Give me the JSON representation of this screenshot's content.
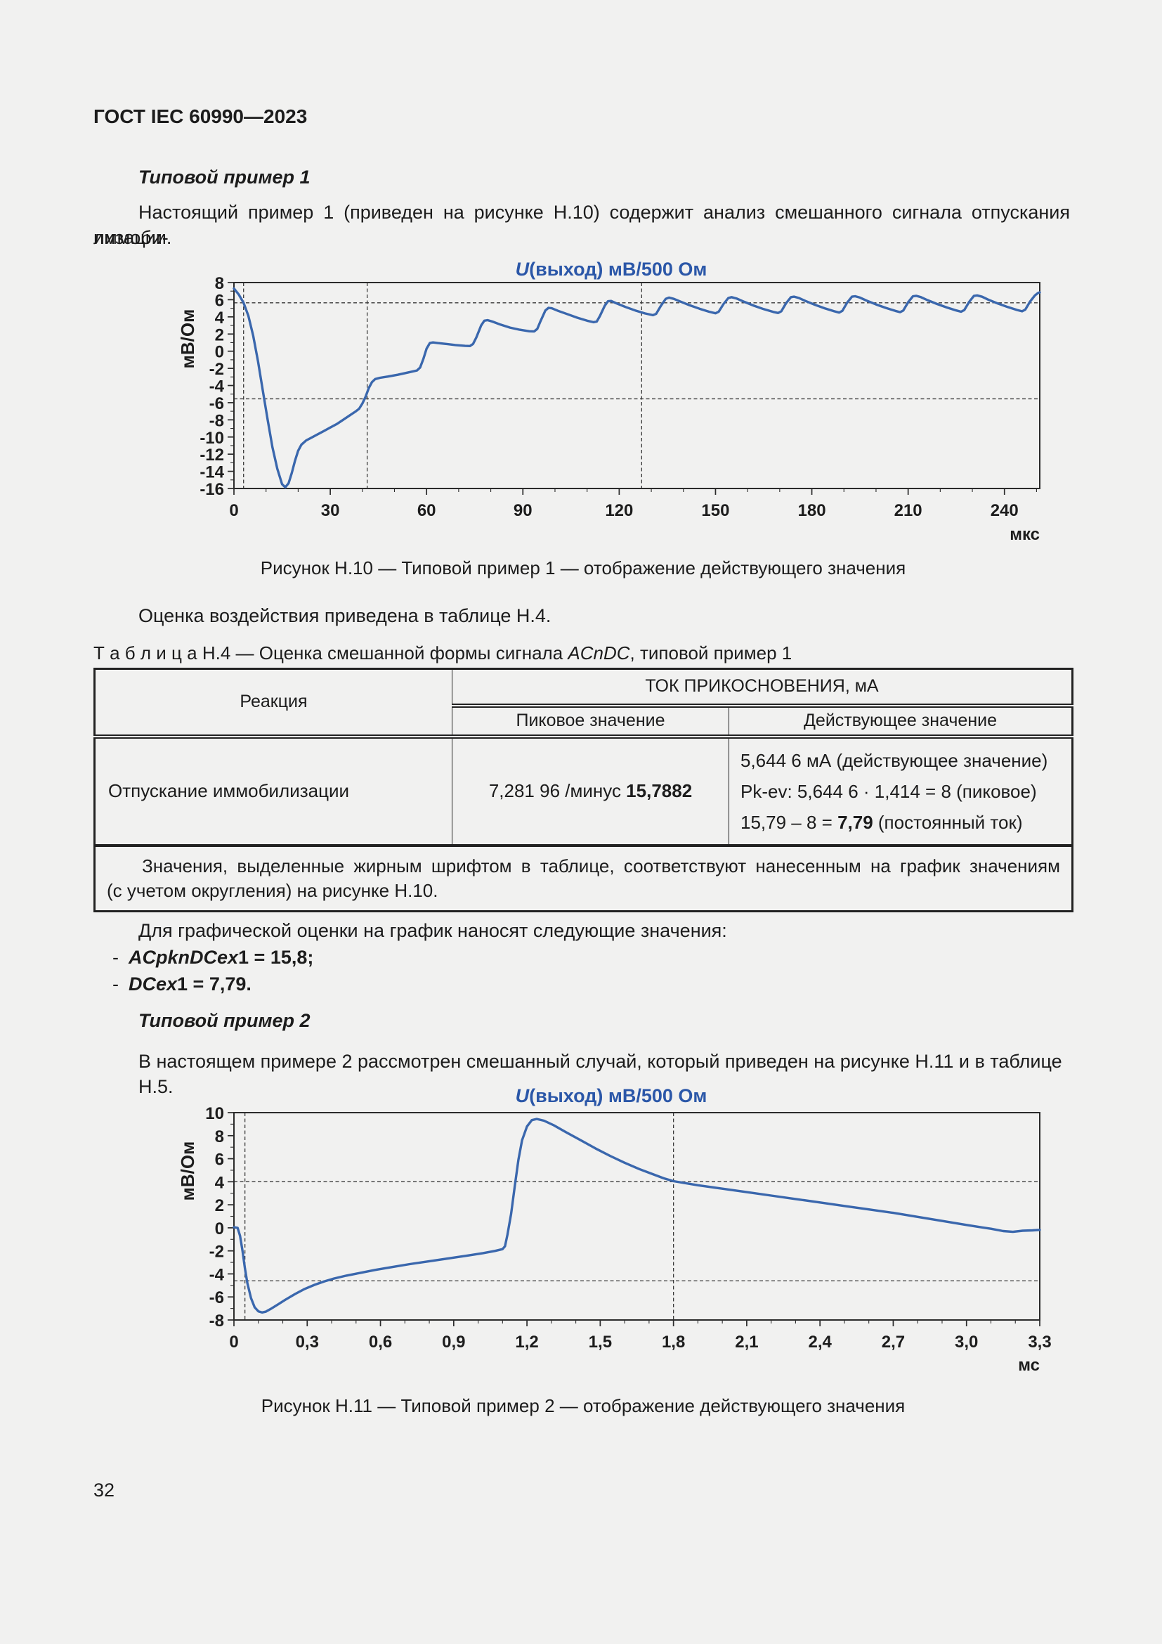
{
  "page": {
    "header": "ГОСТ IEC 60990—2023",
    "number": "32"
  },
  "colors": {
    "accent_blue": "#2b57a8",
    "curve_blue": "#3a67ad"
  },
  "example1": {
    "heading": "Типовой пример 1",
    "intro_lines": [
      "Настоящий пример 1 (приведен на рисунке Н.10) содержит анализ смешанного сигнала отпускания иммоби-",
      "лизации."
    ]
  },
  "figure10": {
    "caption": "Рисунок Н.10 — Типовой пример 1 — отображение действующего значения"
  },
  "after_fig10": "Оценка воздействия приведена в таблице Н.4.",
  "table": {
    "title_prefix": "Т а б л и ц а   Н.4 — Оценка смешанной формы сигнала ",
    "title_italic": "ACnDC",
    "title_suffix": ", типовой пример 1",
    "col_reaction": "Реакция",
    "col_touch_current": "ТОК ПРИКОСНОВЕНИЯ, мА",
    "col_peak": "Пиковое значение",
    "col_rms": "Действующее значение",
    "row": {
      "reaction": "Отпускание иммобилизации",
      "peak_normal": "7,281 96 /минус ",
      "peak_bold": "15,7882",
      "rms_line1": "5,644 6 мА (действующее значение)",
      "rms_line2": "Pk-ev: 5,644 6 · 1,414 = 8 (пиковое)",
      "rms_line3_normal": "15,79 – 8 = ",
      "rms_line3_bold": "7,79",
      "rms_line3_tail": " (постоянный ток)"
    },
    "note_lines": [
      "Значения, выделенные жирным шрифтом в таблице, соответствуют нанесенным на график значениям",
      "(с учетом округления) на рисунке Н.10."
    ]
  },
  "graph_values": {
    "intro": "Для графической оценки на график наносят следующие значения:",
    "items": [
      {
        "dash": "-",
        "var": "ACpknDCex",
        "rest": "1 = 15,8;"
      },
      {
        "dash": "-",
        "var": "DCex",
        "rest": "1 = 7,79."
      }
    ]
  },
  "example2": {
    "heading": "Типовой пример 2",
    "intro": "В настоящем примере 2 рассмотрен смешанный случай, который приведен на рисунке Н.11 и в таблице Н.5."
  },
  "figure11": {
    "caption": "Рисунок Н.11 — Типовой пример 2 — отображение действующего значения"
  },
  "chart_data": [
    {
      "type": "line",
      "title": "U(выход) мВ/500 Ом",
      "ylabel": "мВ/Ом",
      "x_unit": "мкс",
      "xlim": [
        0,
        251
      ],
      "ylim": [
        -16,
        8
      ],
      "x_ticks": [
        {
          "v": 0,
          "label": "0"
        },
        {
          "v": 30,
          "label": "30"
        },
        {
          "v": 60,
          "label": "60"
        },
        {
          "v": 90,
          "label": "90"
        },
        {
          "v": 120,
          "label": "120"
        },
        {
          "v": 150,
          "label": "150"
        },
        {
          "v": 180,
          "label": "180"
        },
        {
          "v": 210,
          "label": "210"
        },
        {
          "v": 240,
          "label": "240"
        }
      ],
      "y_ticks": [
        8,
        6,
        4,
        2,
        0,
        -2,
        -4,
        -6,
        -8,
        -10,
        -12,
        -14,
        -16
      ],
      "cursors_x": [
        3,
        41.5,
        127
      ],
      "cursors_y": [
        5.64,
        -5.55
      ],
      "points": [
        [
          0,
          7.3
        ],
        [
          1.5,
          6.6
        ],
        [
          3,
          5.64
        ],
        [
          4.5,
          4.1
        ],
        [
          6,
          1.8
        ],
        [
          7.5,
          -1.2
        ],
        [
          9,
          -4.6
        ],
        [
          10.5,
          -8
        ],
        [
          12,
          -11.2
        ],
        [
          13.5,
          -13.7
        ],
        [
          15,
          -15.5
        ],
        [
          16,
          -15.85
        ],
        [
          17,
          -15.4
        ],
        [
          18,
          -14.2
        ],
        [
          19,
          -12.8
        ],
        [
          20,
          -11.6
        ],
        [
          21,
          -10.9
        ],
        [
          22.5,
          -10.4
        ],
        [
          24,
          -10.1
        ],
        [
          26,
          -9.7
        ],
        [
          28,
          -9.3
        ],
        [
          30,
          -8.9
        ],
        [
          32,
          -8.5
        ],
        [
          34,
          -8
        ],
        [
          36,
          -7.5
        ],
        [
          38,
          -7
        ],
        [
          39,
          -6.7
        ],
        [
          40,
          -6.1
        ],
        [
          41,
          -5.3
        ],
        [
          42,
          -4.3
        ],
        [
          43,
          -3.6
        ],
        [
          44,
          -3.25
        ],
        [
          45.5,
          -3.1
        ],
        [
          48,
          -2.95
        ],
        [
          51,
          -2.75
        ],
        [
          54,
          -2.5
        ],
        [
          57,
          -2.25
        ],
        [
          58,
          -1.9
        ],
        [
          59,
          -0.9
        ],
        [
          60,
          0.3
        ],
        [
          61,
          0.95
        ],
        [
          62,
          1.02
        ],
        [
          63.5,
          0.95
        ],
        [
          66,
          0.85
        ],
        [
          69,
          0.72
        ],
        [
          72,
          0.62
        ],
        [
          73.5,
          0.6
        ],
        [
          74.5,
          0.85
        ],
        [
          75.5,
          1.6
        ],
        [
          77,
          3
        ],
        [
          78,
          3.55
        ],
        [
          79,
          3.62
        ],
        [
          80.5,
          3.45
        ],
        [
          83,
          3.1
        ],
        [
          86,
          2.75
        ],
        [
          89,
          2.5
        ],
        [
          92,
          2.32
        ],
        [
          93.5,
          2.3
        ],
        [
          94.5,
          2.6
        ],
        [
          95.5,
          3.5
        ],
        [
          97,
          4.75
        ],
        [
          98,
          5.05
        ],
        [
          99,
          5.0
        ],
        [
          101,
          4.7
        ],
        [
          104,
          4.3
        ],
        [
          107,
          3.9
        ],
        [
          110,
          3.55
        ],
        [
          112,
          3.38
        ],
        [
          113,
          3.45
        ],
        [
          114,
          4.1
        ],
        [
          115.5,
          5.3
        ],
        [
          116.5,
          5.82
        ],
        [
          117.5,
          5.85
        ],
        [
          119,
          5.6
        ],
        [
          122,
          5.15
        ],
        [
          125,
          4.75
        ],
        [
          128,
          4.4
        ],
        [
          130.5,
          4.2
        ],
        [
          131.5,
          4.35
        ],
        [
          133,
          5.3
        ],
        [
          134.5,
          6.1
        ],
        [
          135.5,
          6.25
        ],
        [
          137,
          6.1
        ],
        [
          139,
          5.8
        ],
        [
          142,
          5.35
        ],
        [
          145,
          4.95
        ],
        [
          148,
          4.6
        ],
        [
          150,
          4.42
        ],
        [
          151,
          4.6
        ],
        [
          152.5,
          5.5
        ],
        [
          154,
          6.2
        ],
        [
          155,
          6.3
        ],
        [
          156.5,
          6.15
        ],
        [
          159,
          5.75
        ],
        [
          162,
          5.3
        ],
        [
          165,
          4.9
        ],
        [
          168,
          4.58
        ],
        [
          169.5,
          4.45
        ],
        [
          170.5,
          4.65
        ],
        [
          172,
          5.6
        ],
        [
          173.5,
          6.3
        ],
        [
          174.5,
          6.35
        ],
        [
          176,
          6.2
        ],
        [
          178,
          5.85
        ],
        [
          181,
          5.4
        ],
        [
          184,
          5.0
        ],
        [
          187,
          4.65
        ],
        [
          188.5,
          4.5
        ],
        [
          189.5,
          4.7
        ],
        [
          191,
          5.65
        ],
        [
          192.5,
          6.35
        ],
        [
          193.5,
          6.4
        ],
        [
          195,
          6.25
        ],
        [
          197,
          5.9
        ],
        [
          200,
          5.45
        ],
        [
          203,
          5.05
        ],
        [
          206,
          4.7
        ],
        [
          207.5,
          4.55
        ],
        [
          208.5,
          4.75
        ],
        [
          210,
          5.7
        ],
        [
          211.5,
          6.4
        ],
        [
          212.5,
          6.45
        ],
        [
          214,
          6.3
        ],
        [
          216,
          5.95
        ],
        [
          219,
          5.5
        ],
        [
          222,
          5.1
        ],
        [
          225,
          4.75
        ],
        [
          226.5,
          4.6
        ],
        [
          227.5,
          4.8
        ],
        [
          229,
          5.75
        ],
        [
          230.5,
          6.45
        ],
        [
          231.5,
          6.5
        ],
        [
          233,
          6.35
        ],
        [
          235,
          6.0
        ],
        [
          238,
          5.55
        ],
        [
          241,
          5.15
        ],
        [
          244,
          4.8
        ],
        [
          245.5,
          4.65
        ],
        [
          246.5,
          4.85
        ],
        [
          248,
          5.8
        ],
        [
          249.5,
          6.5
        ],
        [
          250.5,
          6.8
        ],
        [
          251,
          6.85
        ]
      ]
    },
    {
      "type": "line",
      "title": "U(выход) мВ/500 Ом",
      "ylabel": "мВ/Ом",
      "x_unit": "мс",
      "xlim": [
        0,
        3.3
      ],
      "ylim": [
        -8,
        10
      ],
      "x_ticks": [
        {
          "v": 0,
          "label": "0"
        },
        {
          "v": 0.3,
          "label": "0,3"
        },
        {
          "v": 0.6,
          "label": "0,6"
        },
        {
          "v": 0.9,
          "label": "0,9"
        },
        {
          "v": 1.2,
          "label": "1,2"
        },
        {
          "v": 1.5,
          "label": "1,5"
        },
        {
          "v": 1.8,
          "label": "1,8"
        },
        {
          "v": 2.1,
          "label": "2,1"
        },
        {
          "v": 2.4,
          "label": "2,4"
        },
        {
          "v": 2.7,
          "label": "2,7"
        },
        {
          "v": 3.0,
          "label": "3,0"
        },
        {
          "v": 3.3,
          "label": "3,3"
        }
      ],
      "y_ticks": [
        10,
        8,
        6,
        4,
        2,
        0,
        -2,
        -4,
        -6,
        -8
      ],
      "cursors_x": [
        0.045,
        1.8
      ],
      "cursors_y": [
        4,
        -4.6
      ],
      "points": [
        [
          0,
          0.05
        ],
        [
          0.015,
          0.0
        ],
        [
          0.025,
          -0.7
        ],
        [
          0.035,
          -2.0
        ],
        [
          0.045,
          -3.5
        ],
        [
          0.055,
          -4.8
        ],
        [
          0.07,
          -6.1
        ],
        [
          0.085,
          -6.9
        ],
        [
          0.1,
          -7.25
        ],
        [
          0.115,
          -7.35
        ],
        [
          0.13,
          -7.28
        ],
        [
          0.15,
          -7.05
        ],
        [
          0.18,
          -6.65
        ],
        [
          0.21,
          -6.25
        ],
        [
          0.25,
          -5.75
        ],
        [
          0.29,
          -5.3
        ],
        [
          0.33,
          -4.95
        ],
        [
          0.37,
          -4.65
        ],
        [
          0.41,
          -4.4
        ],
        [
          0.46,
          -4.15
        ],
        [
          0.52,
          -3.9
        ],
        [
          0.58,
          -3.65
        ],
        [
          0.65,
          -3.4
        ],
        [
          0.72,
          -3.15
        ],
        [
          0.8,
          -2.9
        ],
        [
          0.88,
          -2.65
        ],
        [
          0.96,
          -2.4
        ],
        [
          1.02,
          -2.2
        ],
        [
          1.07,
          -2.0
        ],
        [
          1.1,
          -1.85
        ],
        [
          1.11,
          -1.6
        ],
        [
          1.12,
          -0.6
        ],
        [
          1.135,
          1.2
        ],
        [
          1.15,
          3.6
        ],
        [
          1.165,
          5.9
        ],
        [
          1.18,
          7.6
        ],
        [
          1.2,
          8.8
        ],
        [
          1.22,
          9.35
        ],
        [
          1.24,
          9.45
        ],
        [
          1.27,
          9.3
        ],
        [
          1.31,
          8.9
        ],
        [
          1.36,
          8.3
        ],
        [
          1.42,
          7.6
        ],
        [
          1.48,
          6.9
        ],
        [
          1.54,
          6.25
        ],
        [
          1.6,
          5.65
        ],
        [
          1.66,
          5.1
        ],
        [
          1.71,
          4.7
        ],
        [
          1.76,
          4.3
        ],
        [
          1.8,
          4.05
        ],
        [
          1.9,
          3.7
        ],
        [
          2.0,
          3.4
        ],
        [
          2.1,
          3.1
        ],
        [
          2.2,
          2.8
        ],
        [
          2.3,
          2.5
        ],
        [
          2.4,
          2.2
        ],
        [
          2.5,
          1.9
        ],
        [
          2.6,
          1.6
        ],
        [
          2.7,
          1.3
        ],
        [
          2.8,
          0.95
        ],
        [
          2.9,
          0.6
        ],
        [
          3.0,
          0.25
        ],
        [
          3.05,
          0.08
        ],
        [
          3.1,
          -0.08
        ],
        [
          3.15,
          -0.28
        ],
        [
          3.19,
          -0.35
        ],
        [
          3.23,
          -0.25
        ],
        [
          3.27,
          -0.22
        ],
        [
          3.3,
          -0.18
        ]
      ]
    }
  ]
}
